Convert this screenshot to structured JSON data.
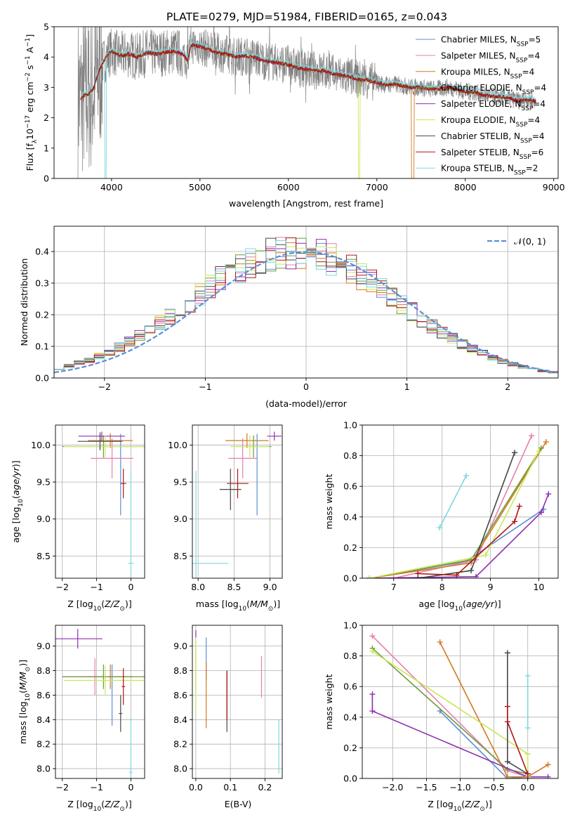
{
  "title": "PLATE=0279, MJD=51984, FIBERID=0165, z=0.043",
  "models": [
    {
      "label": "Chabrier MILES, N$_{SSP}$=5",
      "name": "Chabrier MILES",
      "nssp": "5",
      "color": "#5b8fd6"
    },
    {
      "label": "Salpeter MILES, N$_{SSP}$=4",
      "name": "Salpeter MILES",
      "nssp": "4",
      "color": "#e57fb0"
    },
    {
      "label": "Kroupa MILES, N$_{SSP}$=4",
      "name": "Kroupa MILES",
      "nssp": "4",
      "color": "#d2781e"
    },
    {
      "label": "Chabrier ELODIE, N$_{SSP}$=4",
      "name": "Chabrier ELODIE",
      "nssp": "4",
      "color": "#6e9a3a"
    },
    {
      "label": "Salpeter ELODIE, N$_{SSP}$=4",
      "name": "Salpeter ELODIE",
      "nssp": "4",
      "color": "#8e2fb0"
    },
    {
      "label": "Kroupa ELODIE, N$_{SSP}$=4",
      "name": "Kroupa ELODIE",
      "nssp": "4",
      "color": "#c8e85a"
    },
    {
      "label": "Chabrier STELIB, N$_{SSP}$=4",
      "name": "Chabrier STELIB",
      "nssp": "4",
      "color": "#474747"
    },
    {
      "label": "Salpeter STELIB, N$_{SSP}$=6",
      "name": "Salpeter STELIB",
      "nssp": "6",
      "color": "#b01616"
    },
    {
      "label": "Kroupa STELIB, N$_{SSP}$=2",
      "name": "Kroupa STELIB",
      "nssp": "2",
      "color": "#7dd8e0"
    }
  ],
  "chart_data": [
    {
      "id": "spectrum",
      "type": "line",
      "xlabel": "wavelength [Angstrom, rest frame]",
      "ylabel": "Flux [f_λ 10^-17 erg cm^-2 s^-1 A^-1]",
      "xlim": [
        3350,
        9050
      ],
      "ylim": [
        0,
        5
      ],
      "xticks": [
        4000,
        5000,
        6000,
        7000,
        8000,
        9000
      ],
      "yticks": [
        0,
        1,
        2,
        3,
        4,
        5
      ],
      "grid": false,
      "legend": "upper right",
      "data_color": "#808080",
      "model_shape": {
        "x": [
          3650,
          3700,
          3750,
          3800,
          3850,
          3900,
          3950,
          4000,
          4100,
          4200,
          4300,
          4400,
          4500,
          4600,
          4700,
          4800,
          4860,
          4900,
          5000,
          5100,
          5200,
          5300,
          5400,
          5500,
          5600,
          5700,
          5800,
          5900,
          6000,
          6100,
          6200,
          6300,
          6400,
          6500,
          6600,
          6700,
          6800,
          6900,
          7000,
          7100,
          7200,
          7300,
          7400,
          7500,
          7600,
          7700,
          7800,
          7900,
          8000,
          8100,
          8200,
          8300,
          8400,
          8500,
          8600,
          8700,
          8800
        ],
        "y": [
          2.65,
          2.75,
          2.8,
          3.0,
          3.5,
          3.8,
          4.05,
          4.2,
          4.05,
          4.1,
          4.0,
          4.15,
          4.1,
          4.15,
          4.2,
          4.1,
          3.9,
          4.4,
          4.35,
          4.25,
          4.15,
          4.1,
          4.0,
          4.05,
          4.0,
          3.9,
          3.85,
          3.8,
          3.75,
          3.65,
          3.6,
          3.55,
          3.55,
          3.45,
          3.4,
          3.35,
          3.25,
          3.25,
          3.15,
          3.1,
          3.1,
          3.05,
          3.0,
          3.0,
          2.95,
          2.95,
          3.0,
          2.95,
          2.85,
          2.85,
          2.75,
          2.7,
          2.7,
          2.65,
          2.55,
          2.6,
          2.55
        ]
      }
    },
    {
      "id": "residuals",
      "type": "line",
      "xlabel": "(data-model)/error",
      "ylabel": "Normed distribution",
      "xlim": [
        -2.5,
        2.5
      ],
      "ylim": [
        0,
        0.48
      ],
      "xticks": [
        -2,
        -1,
        0,
        1,
        2
      ],
      "yticks": [
        0.0,
        0.1,
        0.2,
        0.3,
        0.4
      ],
      "grid": true,
      "legend": "upper right",
      "reference": {
        "label": "𝒩(0, 1)",
        "mu": 0,
        "sigma": 1,
        "color": "#5b8fd6"
      },
      "bin_width": 0.1
    },
    {
      "id": "age-vs-Z",
      "type": "scatter",
      "xlabel": "Z [log10(Z/Z⊙)]",
      "ylabel": "age  [log10(age/yr)]",
      "xlim": [
        -2.2,
        0.4
      ],
      "ylim": [
        8.2,
        10.27
      ],
      "xticks": [
        -2,
        -1,
        0
      ],
      "yticks": [
        8.5,
        9.0,
        9.5,
        10.0
      ],
      "grid": true,
      "points": [
        {
          "model": 0,
          "x": -0.3,
          "y": 9.6,
          "ex": 0,
          "ey": 0.55
        },
        {
          "model": 1,
          "x": -0.55,
          "y": 9.82,
          "ex": 0.62,
          "ey": 0.27
        },
        {
          "model": 2,
          "x": -0.6,
          "y": 10.06,
          "ex": 0.65,
          "ey": 0.1
        },
        {
          "model": 3,
          "x": -0.8,
          "y": 9.98,
          "ex": 1.2,
          "ey": 0.15
        },
        {
          "model": 4,
          "x": -0.85,
          "y": 10.12,
          "ex": 0.68,
          "ey": 0.06
        },
        {
          "model": 5,
          "x": -0.75,
          "y": 9.98,
          "ex": 1.2,
          "ey": 0.15
        },
        {
          "model": 6,
          "x": -0.9,
          "y": 10.05,
          "ex": 0.65,
          "ey": 0.12
        },
        {
          "model": 7,
          "x": -0.22,
          "y": 9.48,
          "ex": 0.08,
          "ey": 0.2
        },
        {
          "model": 8,
          "x": 0.0,
          "y": 8.4,
          "ex": 0.08,
          "ey": 1.25
        }
      ]
    },
    {
      "id": "age-vs-mass",
      "type": "scatter",
      "xlabel": "mass [log10(M/M⊙)]",
      "ylabel": "",
      "xlim": [
        7.92,
        9.17
      ],
      "ylim": [
        8.2,
        10.27
      ],
      "xticks": [
        8.0,
        8.5,
        9.0
      ],
      "yticks": [
        8.5,
        9.0,
        9.5,
        10.0
      ],
      "grid": true,
      "points": [
        {
          "model": 0,
          "x": 8.82,
          "y": 9.6,
          "ex": 0,
          "ey": 0.55
        },
        {
          "model": 1,
          "x": 8.62,
          "y": 9.82,
          "ex": 0.2,
          "ey": 0.27
        },
        {
          "model": 2,
          "x": 8.68,
          "y": 10.06,
          "ex": 0.3,
          "ey": 0.1
        },
        {
          "model": 3,
          "x": 8.77,
          "y": 9.98,
          "ex": 0.25,
          "ey": 0.15
        },
        {
          "model": 4,
          "x": 9.06,
          "y": 10.12,
          "ex": 0.1,
          "ey": 0.06
        },
        {
          "model": 5,
          "x": 8.72,
          "y": 9.98,
          "ex": 0.27,
          "ey": 0.15
        },
        {
          "model": 6,
          "x": 8.45,
          "y": 9.4,
          "ex": 0.15,
          "ey": 0.28
        },
        {
          "model": 7,
          "x": 8.55,
          "y": 9.48,
          "ex": 0.15,
          "ey": 0.2
        },
        {
          "model": 8,
          "x": 7.97,
          "y": 8.4,
          "ex": 0.45,
          "ey": 1.25
        }
      ]
    },
    {
      "id": "massweight-vs-age",
      "type": "line",
      "xlabel": "age  [log10(age/yr)]",
      "ylabel": "mass weight",
      "xlim": [
        6.35,
        10.4
      ],
      "ylim": [
        0,
        1.0
      ],
      "xticks": [
        7,
        8,
        9,
        10
      ],
      "yticks": [
        0.0,
        0.2,
        0.4,
        0.6,
        0.8,
        1.0
      ],
      "grid": true,
      "series": [
        {
          "model": 0,
          "x": [
            6.5,
            8.5,
            10.1
          ],
          "y": [
            0.0,
            0.11,
            0.45
          ]
        },
        {
          "model": 1,
          "x": [
            7.0,
            8.7,
            9.85
          ],
          "y": [
            0.0,
            0.12,
            0.93
          ]
        },
        {
          "model": 2,
          "x": [
            6.5,
            8.6,
            10.15
          ],
          "y": [
            0.0,
            0.1,
            0.89
          ]
        },
        {
          "model": 3,
          "x": [
            6.5,
            8.6,
            10.05
          ],
          "y": [
            0.0,
            0.12,
            0.85
          ]
        },
        {
          "model": 4,
          "x": [
            6.5,
            8.7,
            10.05,
            10.2
          ],
          "y": [
            0.0,
            0.01,
            0.43,
            0.55
          ]
        },
        {
          "model": 5,
          "x": [
            6.5,
            8.9,
            10.0
          ],
          "y": [
            0.0,
            0.15,
            0.83
          ]
        },
        {
          "model": 6,
          "x": [
            7.5,
            8.6,
            9.5
          ],
          "y": [
            0.0,
            0.05,
            0.82
          ]
        },
        {
          "model": 7,
          "x": [
            7.5,
            8.3,
            9.5,
            9.6
          ],
          "y": [
            0.03,
            0.02,
            0.37,
            0.47
          ]
        },
        {
          "model": 8,
          "x": [
            7.95,
            8.5
          ],
          "y": [
            0.33,
            0.67
          ]
        }
      ]
    },
    {
      "id": "mass-vs-Z",
      "type": "scatter",
      "xlabel": "Z [log10(Z/Z⊙)]",
      "ylabel": "mass [log10(M/M⊙)]",
      "xlim": [
        -2.2,
        0.4
      ],
      "ylim": [
        7.92,
        9.17
      ],
      "xticks": [
        -2,
        -1,
        0
      ],
      "yticks": [
        8.0,
        8.2,
        8.4,
        8.6,
        8.8,
        9.0
      ],
      "grid": true,
      "points": [
        {
          "model": 0,
          "x": -0.55,
          "y": 8.6,
          "ex": 0,
          "ey": 0.25
        },
        {
          "model": 1,
          "x": -1.05,
          "y": 8.75,
          "ex": 0.95,
          "ey": 0.15
        },
        {
          "model": 2,
          "x": -0.6,
          "y": 8.75,
          "ex": 0.65,
          "ey": 0.1
        },
        {
          "model": 3,
          "x": -0.8,
          "y": 8.75,
          "ex": 1.2,
          "ey": 0.1
        },
        {
          "model": 4,
          "x": -1.55,
          "y": 9.06,
          "ex": 0.72,
          "ey": 0.08
        },
        {
          "model": 5,
          "x": -0.75,
          "y": 8.72,
          "ex": 1.2,
          "ey": 0.12
        },
        {
          "model": 6,
          "x": -0.3,
          "y": 8.45,
          "ex": 0.05,
          "ey": 0.15
        },
        {
          "model": 7,
          "x": -0.22,
          "y": 8.67,
          "ex": 0.05,
          "ey": 0.15
        },
        {
          "model": 8,
          "x": 0.0,
          "y": 7.97,
          "ex": 0.05,
          "ey": 0.45
        }
      ]
    },
    {
      "id": "mass-vs-ebv",
      "type": "scatter",
      "xlabel": "E(B-V)",
      "ylabel": "",
      "xlim": [
        -0.01,
        0.25
      ],
      "ylim": [
        7.92,
        9.17
      ],
      "xticks": [
        0.0,
        0.1,
        0.2
      ],
      "yticks": [
        8.0,
        8.2,
        8.4,
        8.6,
        8.8,
        9.0
      ],
      "grid": true,
      "points": [
        {
          "model": 0,
          "x": 0.03,
          "y": 8.9,
          "ex": 0,
          "ey": 0.17
        },
        {
          "model": 1,
          "x": 0.19,
          "y": 8.75,
          "ex": 0,
          "ey": 0.17
        },
        {
          "model": 2,
          "x": 0.03,
          "y": 8.6,
          "ex": 0,
          "ey": 0.27
        },
        {
          "model": 3,
          "x": 0.0,
          "y": 8.85,
          "ex": 0,
          "ey": 0.2
        },
        {
          "model": 4,
          "x": 0.0,
          "y": 9.1,
          "ex": 0,
          "ey": 0.03
        },
        {
          "model": 5,
          "x": 0.0,
          "y": 8.75,
          "ex": 0,
          "ey": 0.3
        },
        {
          "model": 6,
          "x": 0.09,
          "y": 8.55,
          "ex": 0,
          "ey": 0.25
        },
        {
          "model": 7,
          "x": 0.09,
          "y": 8.6,
          "ex": 0,
          "ey": 0.2
        },
        {
          "model": 8,
          "x": 0.24,
          "y": 8.18,
          "ex": 0,
          "ey": 0.22
        }
      ]
    },
    {
      "id": "massweight-vs-Z",
      "type": "line",
      "xlabel": "Z [log10(Z/Z⊙)]",
      "ylabel": "mass weight",
      "xlim": [
        -2.45,
        0.45
      ],
      "ylim": [
        0,
        1.0
      ],
      "xticks": [
        -2.0,
        -1.5,
        -1.0,
        -0.5,
        0.0
      ],
      "yticks": [
        0.0,
        0.2,
        0.4,
        0.6,
        0.8,
        1.0
      ],
      "grid": true,
      "series": [
        {
          "model": 0,
          "x": [
            -1.3,
            -0.3,
            0.0
          ],
          "y": [
            0.44,
            0.0,
            0.01
          ]
        },
        {
          "model": 1,
          "x": [
            -2.3,
            -0.3,
            0.0
          ],
          "y": [
            0.93,
            0.05,
            0.01
          ]
        },
        {
          "model": 2,
          "x": [
            -1.3,
            -0.3,
            0.0,
            0.3
          ],
          "y": [
            0.89,
            0.01,
            0.01,
            0.09
          ]
        },
        {
          "model": 3,
          "x": [
            -2.3,
            -0.3,
            0.0
          ],
          "y": [
            0.85,
            0.06,
            0.03
          ]
        },
        {
          "model": 4,
          "x": [
            -2.3,
            -2.3,
            0.0,
            0.3
          ],
          "y": [
            0.55,
            0.44,
            0.01,
            0.01
          ]
        },
        {
          "model": 5,
          "x": [
            -2.3,
            0.0,
            0.0
          ],
          "y": [
            0.83,
            0.16,
            0.01
          ]
        },
        {
          "model": 6,
          "x": [
            -0.3,
            -0.3,
            0.0
          ],
          "y": [
            0.82,
            0.11,
            0.03
          ]
        },
        {
          "model": 7,
          "x": [
            -0.3,
            -0.3,
            0.0,
            0.0
          ],
          "y": [
            0.47,
            0.37,
            0.03,
            0.0
          ]
        },
        {
          "model": 8,
          "x": [
            0.0,
            0.0
          ],
          "y": [
            0.33,
            0.67
          ]
        }
      ]
    }
  ]
}
